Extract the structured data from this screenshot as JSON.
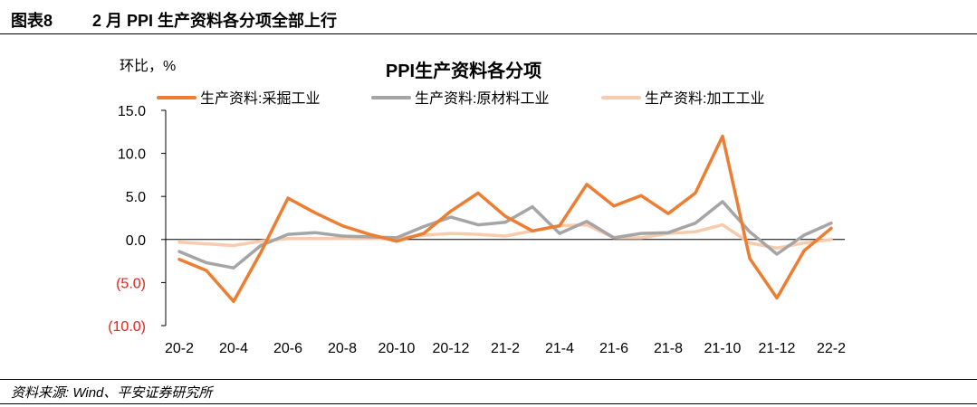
{
  "header": {
    "label": "图表8",
    "title": "2 月 PPI 生产资料各分项全部上行"
  },
  "footer": {
    "source": "资料来源: Wind、平安证券研究所"
  },
  "chart_data": {
    "type": "line",
    "title": "PPI生产资料各分项",
    "ylabel": "环比，%",
    "xlabel": "",
    "ylim": [
      -10,
      15
    ],
    "yticks": [
      {
        "value": 15,
        "label": "15.0",
        "color": "#000000"
      },
      {
        "value": 10,
        "label": "10.0",
        "color": "#000000"
      },
      {
        "value": 5,
        "label": "5.0",
        "color": "#000000"
      },
      {
        "value": 0,
        "label": "0.0",
        "color": "#000000"
      },
      {
        "value": -5,
        "label": "(5.0)",
        "color": "#e8211d"
      },
      {
        "value": -10,
        "label": "(10.0)",
        "color": "#e8211d"
      }
    ],
    "categories": [
      "20-2",
      "20-3",
      "20-4",
      "20-5",
      "20-6",
      "20-7",
      "20-8",
      "20-9",
      "20-10",
      "20-11",
      "20-12",
      "21-1",
      "21-2",
      "21-3",
      "21-4",
      "21-5",
      "21-6",
      "21-7",
      "21-8",
      "21-9",
      "21-10",
      "21-11",
      "21-12",
      "22-1",
      "22-2"
    ],
    "xtick_labels": [
      "20-2",
      "20-4",
      "20-6",
      "20-8",
      "20-10",
      "20-12",
      "21-2",
      "21-4",
      "21-6",
      "21-8",
      "21-10",
      "21-12",
      "22-2"
    ],
    "legend_position": "top",
    "grid": false,
    "series": [
      {
        "name": "生产资料:采掘工业",
        "color": "#ed7d31",
        "values": [
          -2.3,
          -3.6,
          -7.2,
          -1.5,
          4.8,
          3.1,
          1.6,
          0.6,
          -0.2,
          0.7,
          3.3,
          5.4,
          2.7,
          1.0,
          1.6,
          6.4,
          3.9,
          5.1,
          3.0,
          5.4,
          12.0,
          -2.2,
          -6.8,
          -1.3,
          1.3
        ]
      },
      {
        "name": "生产资料:原材料工业",
        "color": "#a5a5a5",
        "values": [
          -1.4,
          -2.7,
          -3.3,
          -0.7,
          0.6,
          0.8,
          0.4,
          0.3,
          0.2,
          1.5,
          2.6,
          1.7,
          2.0,
          3.8,
          0.7,
          2.1,
          0.2,
          0.7,
          0.8,
          1.9,
          4.4,
          0.9,
          -1.7,
          0.5,
          1.9
        ]
      },
      {
        "name": "生产资料:加工工业",
        "color": "#f8cbad",
        "values": [
          -0.3,
          -0.5,
          -0.7,
          -0.2,
          0.1,
          0.1,
          0.1,
          0.1,
          0.1,
          0.5,
          0.7,
          0.6,
          0.4,
          1.0,
          1.6,
          1.7,
          0.2,
          0.2,
          0.7,
          0.9,
          1.7,
          -0.4,
          -1.0,
          -0.4,
          0.0
        ]
      }
    ]
  }
}
